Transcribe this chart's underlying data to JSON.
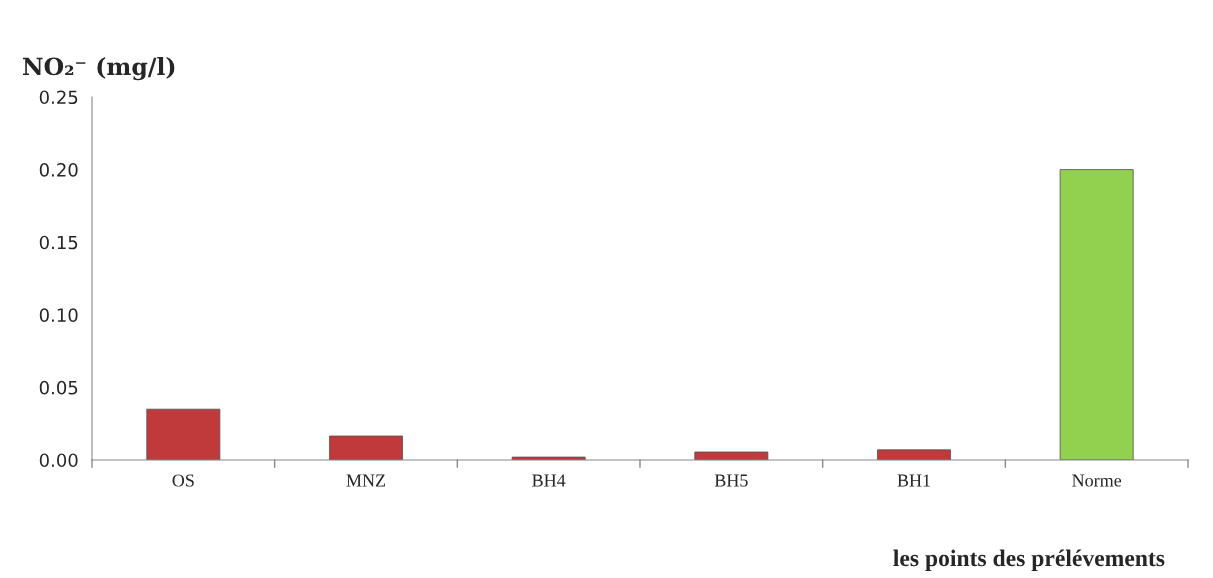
{
  "chart_data": {
    "type": "bar",
    "ylabel": "NO₂⁻ (mg/l)",
    "xlabel": "les points des prélévements",
    "categories": [
      "OS",
      "MNZ",
      "BH4",
      "BH5",
      "BH1",
      "Norme"
    ],
    "values": [
      0.035,
      0.0165,
      0.002,
      0.0055,
      0.007,
      0.2
    ],
    "colors": [
      "#c0393b",
      "#c0393b",
      "#c0393b",
      "#c0393b",
      "#c0393b",
      "#92d050"
    ],
    "ylim": [
      0,
      0.25
    ],
    "yticks": [
      {
        "value": 0,
        "label": "0.00"
      },
      {
        "value": 0.05,
        "label": "0.05"
      },
      {
        "value": 0.1,
        "label": "0.10"
      },
      {
        "value": 0.15,
        "label": "0.15"
      },
      {
        "value": 0.2,
        "label": "0.20"
      },
      {
        "value": 0.25,
        "label": "0.25"
      }
    ],
    "grid": false
  }
}
